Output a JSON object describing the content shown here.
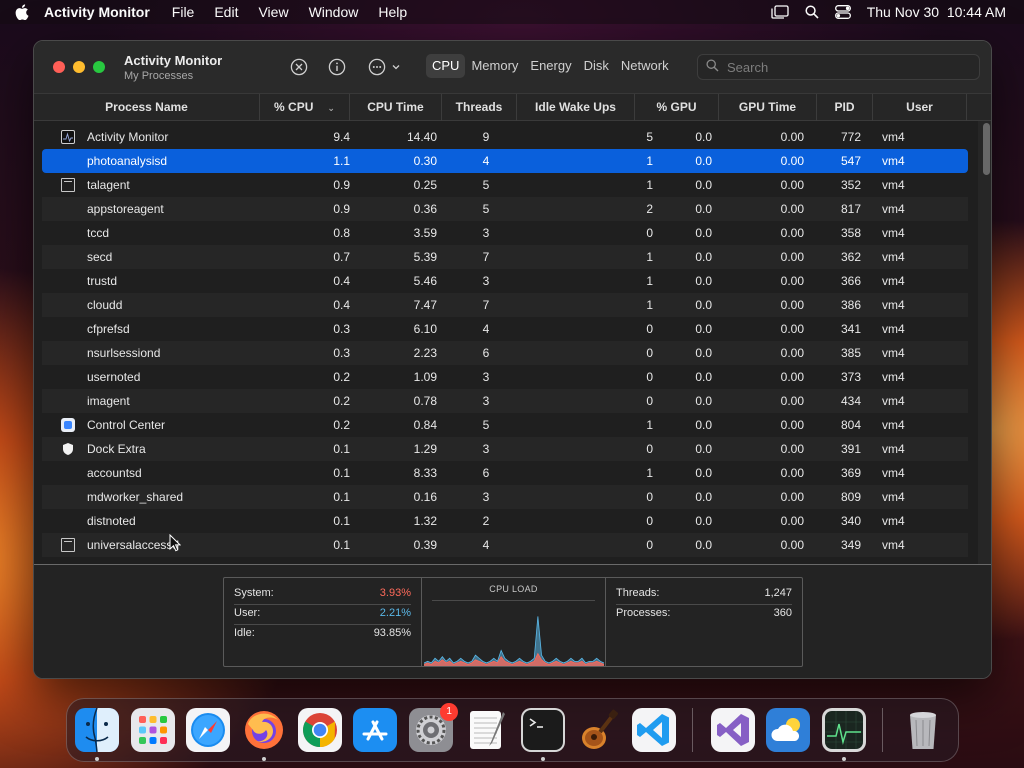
{
  "menubar": {
    "app_name": "Activity Monitor",
    "menus": [
      "File",
      "Edit",
      "View",
      "Window",
      "Help"
    ],
    "datetime": "Thu Nov 30  10:44 AM"
  },
  "window": {
    "title": "Activity Monitor",
    "subtitle": "My Processes",
    "tabs": [
      "CPU",
      "Memory",
      "Energy",
      "Disk",
      "Network"
    ],
    "active_tab": "CPU",
    "search_placeholder": "Search"
  },
  "table": {
    "columns": [
      "Process Name",
      "% CPU",
      "CPU Time",
      "Threads",
      "Idle Wake Ups",
      "% GPU",
      "GPU Time",
      "PID",
      "User"
    ],
    "sorted_column": "% CPU",
    "selected_process": "photoanalysisd",
    "rows": [
      {
        "icon": "activity-monitor-icon",
        "name": "Activity Monitor",
        "cpu": "9.4",
        "cpu_time": "14.40",
        "threads": "9",
        "idle_wake_ups": "5",
        "gpu": "0.0",
        "gpu_time": "0.00",
        "pid": "772",
        "user": "vm4"
      },
      {
        "icon": "",
        "name": "photoanalysisd",
        "cpu": "1.1",
        "cpu_time": "0.30",
        "threads": "4",
        "idle_wake_ups": "1",
        "gpu": "0.0",
        "gpu_time": "0.00",
        "pid": "547",
        "user": "vm4"
      },
      {
        "icon": "window-icon",
        "name": "talagent",
        "cpu": "0.9",
        "cpu_time": "0.25",
        "threads": "5",
        "idle_wake_ups": "1",
        "gpu": "0.0",
        "gpu_time": "0.00",
        "pid": "352",
        "user": "vm4"
      },
      {
        "icon": "",
        "name": "appstoreagent",
        "cpu": "0.9",
        "cpu_time": "0.36",
        "threads": "5",
        "idle_wake_ups": "2",
        "gpu": "0.0",
        "gpu_time": "0.00",
        "pid": "817",
        "user": "vm4"
      },
      {
        "icon": "",
        "name": "tccd",
        "cpu": "0.8",
        "cpu_time": "3.59",
        "threads": "3",
        "idle_wake_ups": "0",
        "gpu": "0.0",
        "gpu_time": "0.00",
        "pid": "358",
        "user": "vm4"
      },
      {
        "icon": "",
        "name": "secd",
        "cpu": "0.7",
        "cpu_time": "5.39",
        "threads": "7",
        "idle_wake_ups": "1",
        "gpu": "0.0",
        "gpu_time": "0.00",
        "pid": "362",
        "user": "vm4"
      },
      {
        "icon": "",
        "name": "trustd",
        "cpu": "0.4",
        "cpu_time": "5.46",
        "threads": "3",
        "idle_wake_ups": "1",
        "gpu": "0.0",
        "gpu_time": "0.00",
        "pid": "366",
        "user": "vm4"
      },
      {
        "icon": "",
        "name": "cloudd",
        "cpu": "0.4",
        "cpu_time": "7.47",
        "threads": "7",
        "idle_wake_ups": "1",
        "gpu": "0.0",
        "gpu_time": "0.00",
        "pid": "386",
        "user": "vm4"
      },
      {
        "icon": "",
        "name": "cfprefsd",
        "cpu": "0.3",
        "cpu_time": "6.10",
        "threads": "4",
        "idle_wake_ups": "0",
        "gpu": "0.0",
        "gpu_time": "0.00",
        "pid": "341",
        "user": "vm4"
      },
      {
        "icon": "",
        "name": "nsurlsessiond",
        "cpu": "0.3",
        "cpu_time": "2.23",
        "threads": "6",
        "idle_wake_ups": "0",
        "gpu": "0.0",
        "gpu_time": "0.00",
        "pid": "385",
        "user": "vm4"
      },
      {
        "icon": "",
        "name": "usernoted",
        "cpu": "0.2",
        "cpu_time": "1.09",
        "threads": "3",
        "idle_wake_ups": "0",
        "gpu": "0.0",
        "gpu_time": "0.00",
        "pid": "373",
        "user": "vm4"
      },
      {
        "icon": "",
        "name": "imagent",
        "cpu": "0.2",
        "cpu_time": "0.78",
        "threads": "3",
        "idle_wake_ups": "0",
        "gpu": "0.0",
        "gpu_time": "0.00",
        "pid": "434",
        "user": "vm4"
      },
      {
        "icon": "control-center-icon",
        "name": "Control Center",
        "cpu": "0.2",
        "cpu_time": "0.84",
        "threads": "5",
        "idle_wake_ups": "1",
        "gpu": "0.0",
        "gpu_time": "0.00",
        "pid": "804",
        "user": "vm4"
      },
      {
        "icon": "shield-icon",
        "name": "Dock Extra",
        "cpu": "0.1",
        "cpu_time": "1.29",
        "threads": "3",
        "idle_wake_ups": "0",
        "gpu": "0.0",
        "gpu_time": "0.00",
        "pid": "391",
        "user": "vm4"
      },
      {
        "icon": "",
        "name": "accountsd",
        "cpu": "0.1",
        "cpu_time": "8.33",
        "threads": "6",
        "idle_wake_ups": "1",
        "gpu": "0.0",
        "gpu_time": "0.00",
        "pid": "369",
        "user": "vm4"
      },
      {
        "icon": "",
        "name": "mdworker_shared",
        "cpu": "0.1",
        "cpu_time": "0.16",
        "threads": "3",
        "idle_wake_ups": "0",
        "gpu": "0.0",
        "gpu_time": "0.00",
        "pid": "809",
        "user": "vm4"
      },
      {
        "icon": "",
        "name": "distnoted",
        "cpu": "0.1",
        "cpu_time": "1.32",
        "threads": "2",
        "idle_wake_ups": "0",
        "gpu": "0.0",
        "gpu_time": "0.00",
        "pid": "340",
        "user": "vm4"
      },
      {
        "icon": "window-icon",
        "name": "universalaccessd",
        "cpu": "0.1",
        "cpu_time": "0.39",
        "threads": "4",
        "idle_wake_ups": "0",
        "gpu": "0.0",
        "gpu_time": "0.00",
        "pid": "349",
        "user": "vm4"
      }
    ]
  },
  "footer": {
    "system_label": "System:",
    "system_value": "3.93%",
    "user_label": "User:",
    "user_value": "2.21%",
    "idle_label": "Idle:",
    "idle_value": "93.85%",
    "cpu_load_title": "CPU LOAD",
    "threads_label": "Threads:",
    "threads_value": "1,247",
    "processes_label": "Processes:",
    "processes_value": "360",
    "colors": {
      "system": "#ff6a5a",
      "user": "#5ab8e8"
    }
  },
  "cpu_load": {
    "system": [
      1,
      2,
      1,
      3,
      2,
      4,
      2,
      3,
      1,
      2,
      3,
      2,
      1,
      2,
      4,
      3,
      2,
      1,
      2,
      3,
      2,
      6,
      3,
      2,
      1,
      2,
      3,
      2,
      1,
      2,
      3,
      8,
      4,
      2,
      1,
      2,
      3,
      2,
      1,
      2,
      3,
      2,
      2,
      3,
      1,
      2,
      2,
      3,
      2,
      1
    ],
    "user": [
      1,
      1,
      1,
      2,
      1,
      2,
      1,
      2,
      1,
      1,
      2,
      1,
      1,
      1,
      3,
      2,
      1,
      1,
      1,
      2,
      1,
      4,
      2,
      1,
      1,
      1,
      2,
      1,
      1,
      1,
      2,
      24,
      3,
      1,
      1,
      1,
      2,
      1,
      1,
      1,
      2,
      1,
      1,
      2,
      1,
      1,
      1,
      2,
      1,
      1
    ]
  },
  "dock": {
    "apps": [
      "Finder",
      "Launchpad",
      "Safari",
      "Firefox",
      "Google Chrome",
      "App Store",
      "System Settings",
      "TextEdit",
      "Terminal",
      "GarageBand",
      "Visual Studio Code",
      "Visual Studio",
      "Weather",
      "Activity Monitor",
      "Trash"
    ],
    "settings_badge": "1"
  }
}
